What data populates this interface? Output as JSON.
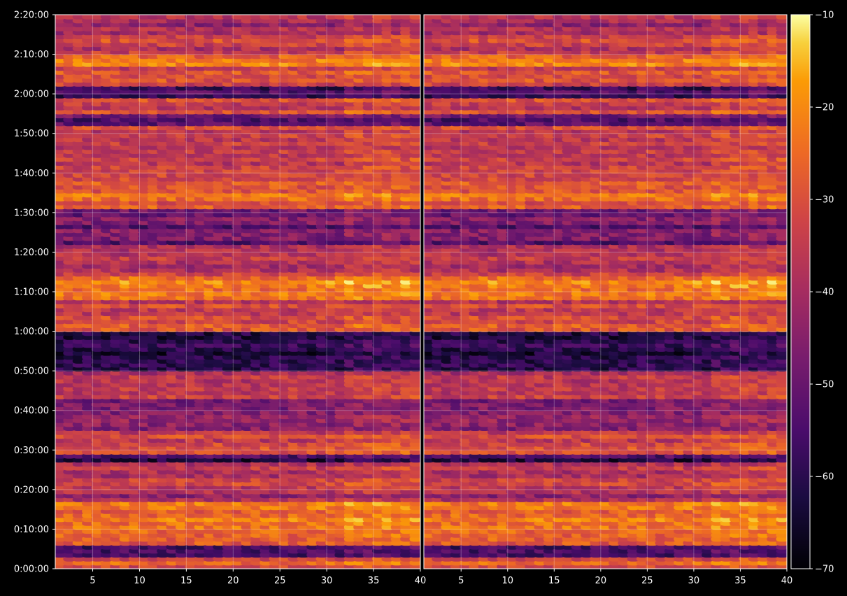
{
  "chart_data": {
    "type": "heatmap",
    "title": "",
    "colormap": "inferno",
    "background": "#000000",
    "grid": true,
    "panels": [
      {
        "name": "",
        "xlim": [
          1,
          40
        ],
        "x_ticks": [
          "5",
          "10",
          "15",
          "20",
          "25",
          "30",
          "35",
          "40"
        ]
      },
      {
        "name": "",
        "xlim": [
          1,
          40
        ],
        "x_ticks": [
          "5",
          "10",
          "15",
          "20",
          "25",
          "30",
          "35",
          "40"
        ]
      }
    ],
    "x_tick_values": [
      5,
      10,
      15,
      20,
      25,
      30,
      35,
      40
    ],
    "y_axis": {
      "label": "",
      "range_seconds": [
        0,
        8400
      ],
      "ticks": [
        "0:00:00",
        "0:10:00",
        "0:20:00",
        "0:30:00",
        "0:40:00",
        "0:50:00",
        "1:00:00",
        "1:10:00",
        "1:20:00",
        "1:30:00",
        "1:40:00",
        "1:50:00",
        "2:00:00",
        "2:10:00",
        "2:20:00"
      ]
    },
    "colorbar": {
      "label": "",
      "range": [
        -70,
        -10
      ],
      "ticks": [
        "−70",
        "−60",
        "−50",
        "−40",
        "−30",
        "−20",
        "−10"
      ]
    },
    "row_profile_minutes": [
      {
        "start": 0,
        "end": 3,
        "value": -27
      },
      {
        "start": 3,
        "end": 6,
        "value": -55
      },
      {
        "start": 6,
        "end": 17,
        "value": -26
      },
      {
        "start": 17,
        "end": 19,
        "value": -40
      },
      {
        "start": 19,
        "end": 27,
        "value": -35
      },
      {
        "start": 27,
        "end": 29,
        "value": -58
      },
      {
        "start": 29,
        "end": 35,
        "value": -33
      },
      {
        "start": 35,
        "end": 43,
        "value": -45
      },
      {
        "start": 43,
        "end": 50,
        "value": -37
      },
      {
        "start": 50,
        "end": 60,
        "value": -62
      },
      {
        "start": 60,
        "end": 62,
        "value": -24
      },
      {
        "start": 62,
        "end": 68,
        "value": -33
      },
      {
        "start": 68,
        "end": 74,
        "value": -22
      },
      {
        "start": 74,
        "end": 82,
        "value": -38
      },
      {
        "start": 82,
        "end": 91,
        "value": -50
      },
      {
        "start": 91,
        "end": 97,
        "value": -27
      },
      {
        "start": 97,
        "end": 112,
        "value": -32
      },
      {
        "start": 112,
        "end": 115,
        "value": -52
      },
      {
        "start": 115,
        "end": 119,
        "value": -33
      },
      {
        "start": 119,
        "end": 122,
        "value": -58
      },
      {
        "start": 122,
        "end": 127,
        "value": -32
      },
      {
        "start": 127,
        "end": 130,
        "value": -26
      },
      {
        "start": 130,
        "end": 135,
        "value": -34
      },
      {
        "start": 135,
        "end": 140,
        "value": -40
      }
    ]
  }
}
